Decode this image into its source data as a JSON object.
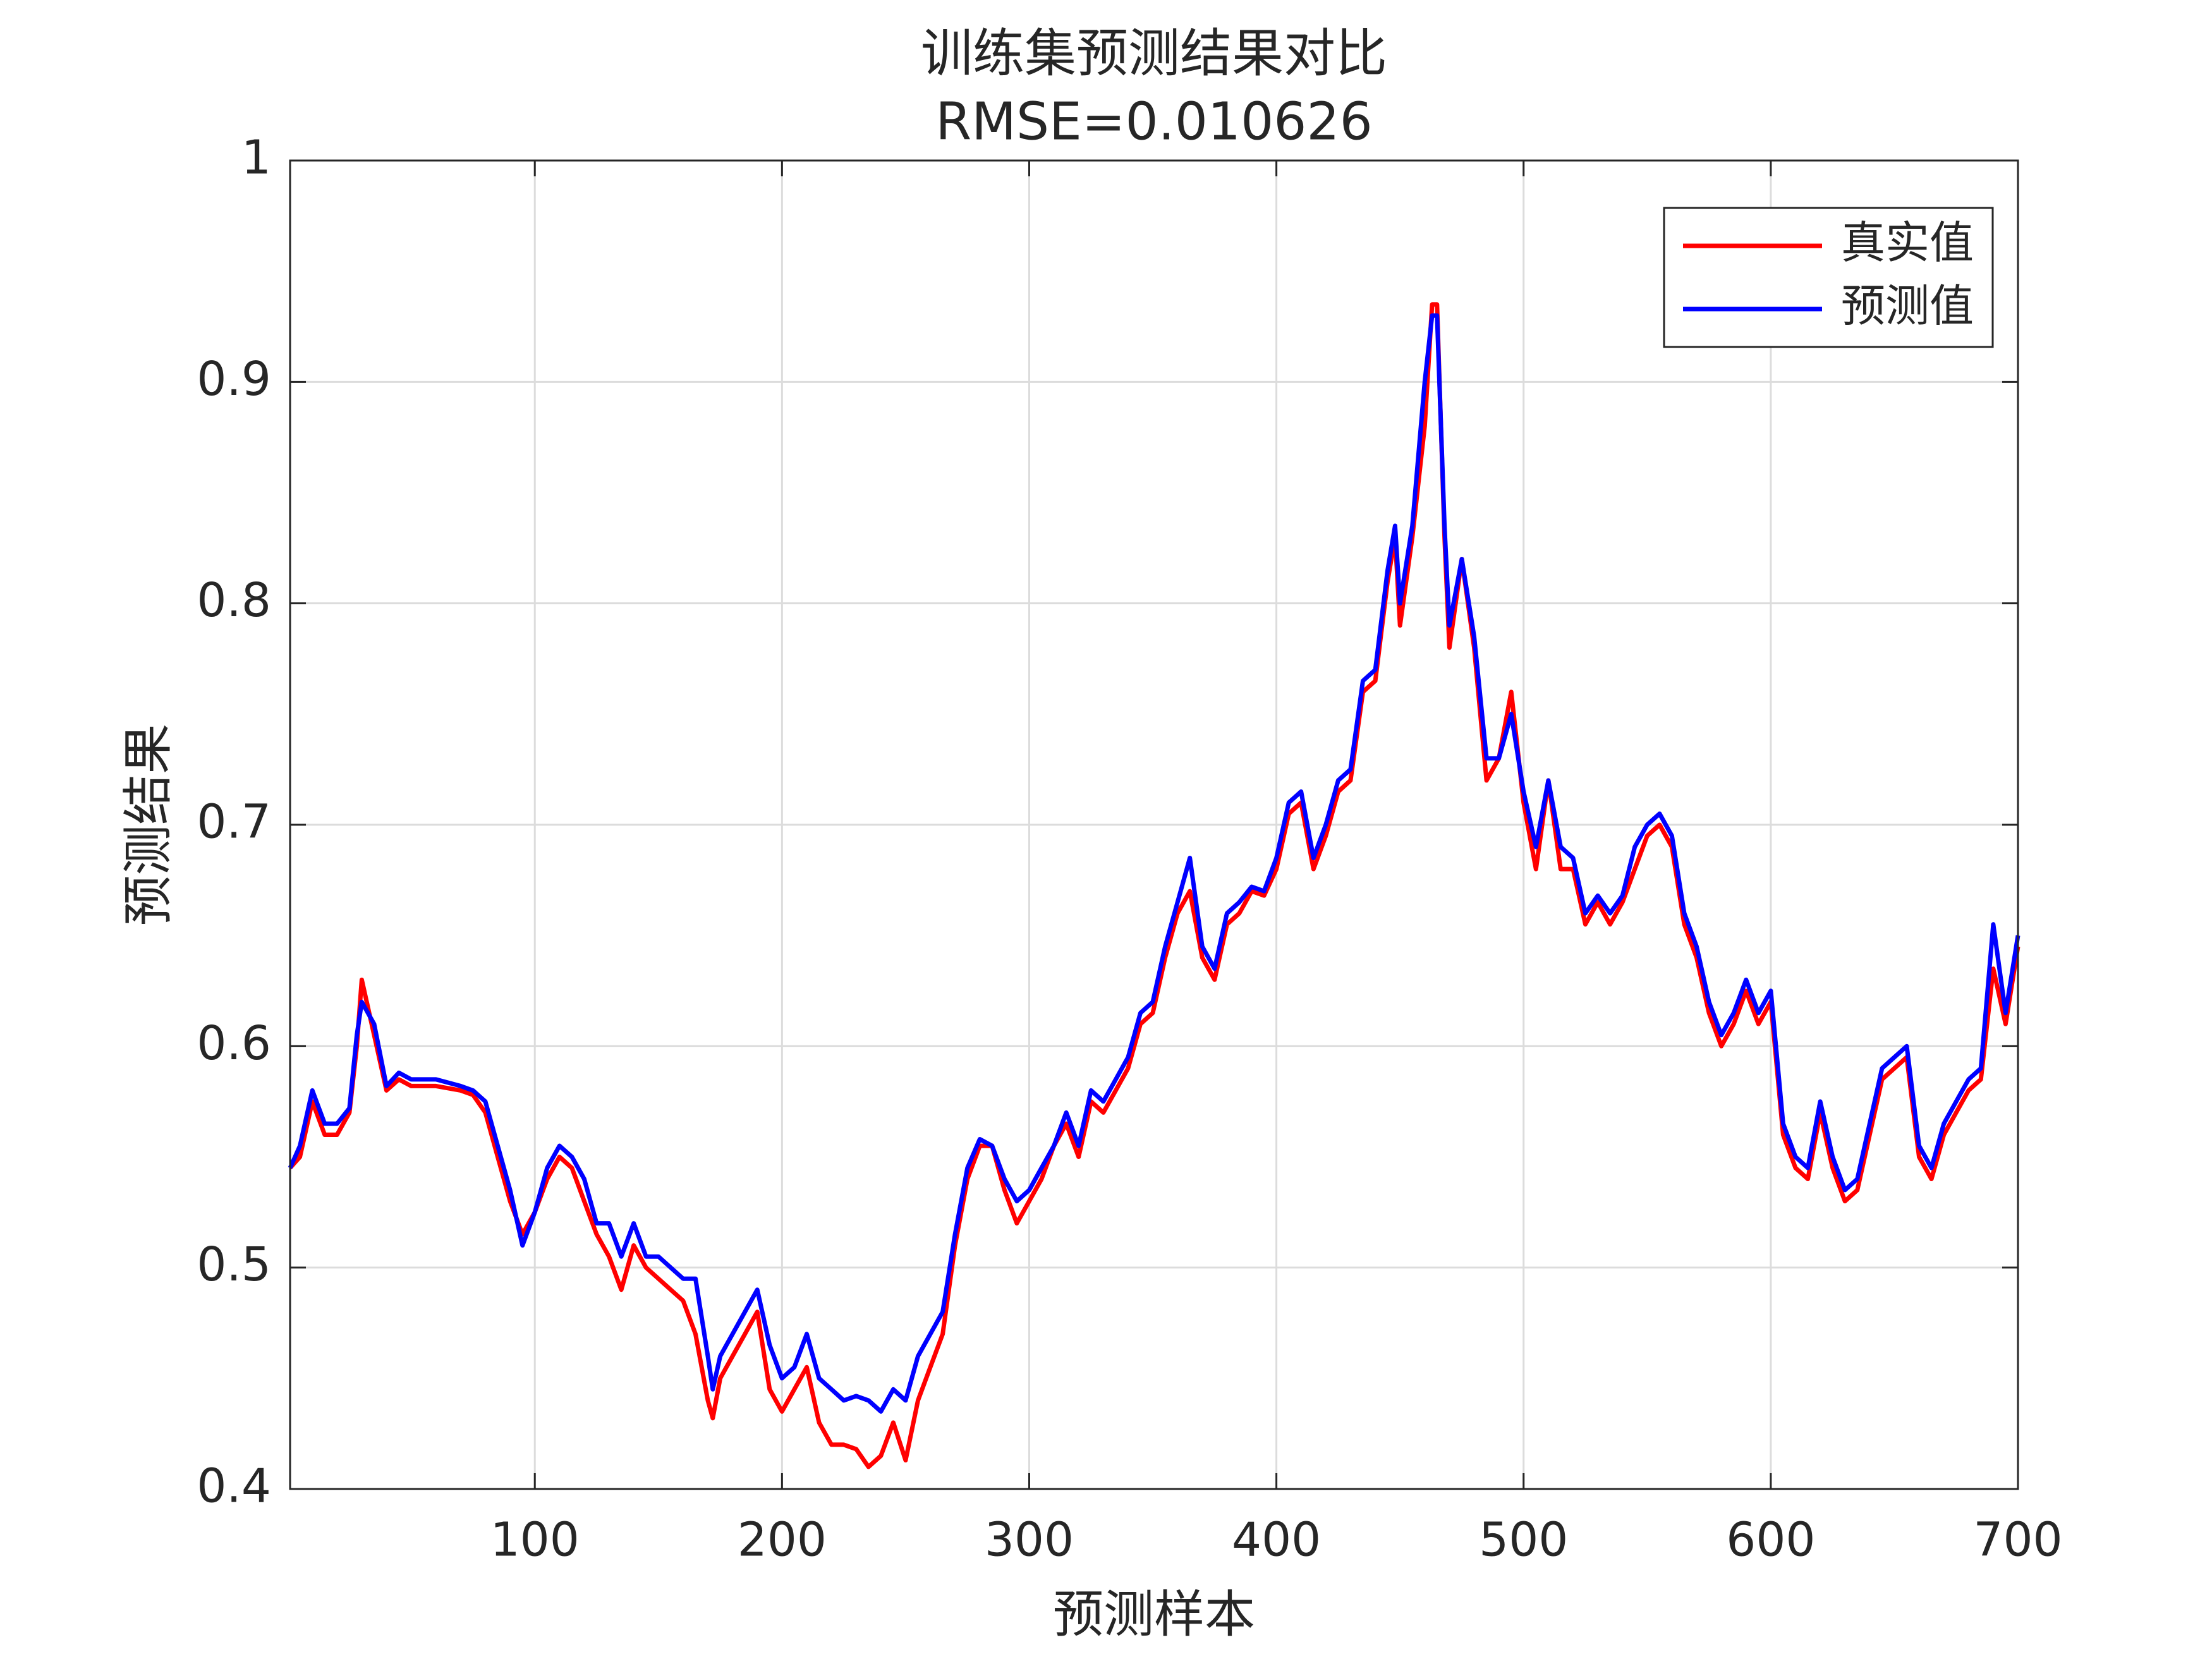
{
  "chart_data": {
    "type": "line",
    "title": "训练集预测结果对比",
    "subtitle": "RMSE=0.010626",
    "x_label": "预测样本",
    "y_label": "预测结果",
    "x": [
      1,
      5,
      10,
      15,
      20,
      25,
      28,
      30,
      35,
      40,
      45,
      50,
      60,
      70,
      75,
      80,
      85,
      90,
      95,
      100,
      105,
      110,
      115,
      120,
      125,
      130,
      135,
      140,
      145,
      150,
      155,
      160,
      165,
      170,
      172,
      175,
      180,
      185,
      190,
      195,
      200,
      205,
      210,
      215,
      220,
      225,
      230,
      235,
      240,
      245,
      250,
      255,
      260,
      265,
      270,
      275,
      280,
      285,
      290,
      295,
      300,
      305,
      310,
      315,
      320,
      325,
      330,
      335,
      340,
      345,
      350,
      355,
      360,
      365,
      370,
      375,
      380,
      385,
      390,
      395,
      400,
      405,
      410,
      415,
      420,
      425,
      430,
      435,
      440,
      445,
      448,
      450,
      455,
      460,
      463,
      465,
      468,
      470,
      475,
      480,
      485,
      490,
      495,
      500,
      505,
      510,
      515,
      520,
      525,
      530,
      535,
      540,
      545,
      550,
      555,
      560,
      565,
      570,
      575,
      580,
      585,
      590,
      595,
      600,
      605,
      610,
      615,
      620,
      625,
      630,
      635,
      640,
      645,
      650,
      655,
      660,
      665,
      670,
      675,
      680,
      685,
      690,
      695,
      700
    ],
    "series": [
      {
        "name": "真实值",
        "color": "#ff0000",
        "values": [
          0.545,
          0.55,
          0.575,
          0.56,
          0.56,
          0.57,
          0.6,
          0.63,
          0.605,
          0.58,
          0.585,
          0.582,
          0.582,
          0.58,
          0.578,
          0.57,
          0.55,
          0.53,
          0.515,
          0.525,
          0.54,
          0.55,
          0.545,
          0.53,
          0.515,
          0.505,
          0.49,
          0.51,
          0.5,
          0.495,
          0.49,
          0.485,
          0.47,
          0.44,
          0.432,
          0.45,
          0.46,
          0.47,
          0.48,
          0.445,
          0.435,
          0.445,
          0.455,
          0.43,
          0.42,
          0.42,
          0.418,
          0.41,
          0.415,
          0.43,
          0.413,
          0.44,
          0.455,
          0.47,
          0.51,
          0.54,
          0.555,
          0.555,
          0.535,
          0.52,
          0.53,
          0.54,
          0.555,
          0.565,
          0.55,
          0.575,
          0.57,
          0.58,
          0.59,
          0.61,
          0.615,
          0.64,
          0.66,
          0.67,
          0.64,
          0.63,
          0.655,
          0.66,
          0.67,
          0.668,
          0.68,
          0.705,
          0.71,
          0.68,
          0.695,
          0.715,
          0.72,
          0.76,
          0.765,
          0.81,
          0.83,
          0.79,
          0.83,
          0.88,
          0.935,
          0.935,
          0.83,
          0.78,
          0.82,
          0.78,
          0.72,
          0.73,
          0.76,
          0.71,
          0.68,
          0.72,
          0.68,
          0.68,
          0.655,
          0.665,
          0.655,
          0.665,
          0.68,
          0.695,
          0.7,
          0.69,
          0.655,
          0.64,
          0.615,
          0.6,
          0.61,
          0.625,
          0.61,
          0.62,
          0.56,
          0.545,
          0.54,
          0.57,
          0.545,
          0.53,
          0.535,
          0.56,
          0.585,
          0.59,
          0.595,
          0.55,
          0.54,
          0.56,
          0.57,
          0.58,
          0.585,
          0.635,
          0.61,
          0.645
        ]
      },
      {
        "name": "预测值",
        "color": "#0000ff",
        "values": [
          0.545,
          0.555,
          0.58,
          0.565,
          0.565,
          0.572,
          0.605,
          0.62,
          0.61,
          0.582,
          0.588,
          0.585,
          0.585,
          0.582,
          0.58,
          0.575,
          0.555,
          0.535,
          0.51,
          0.525,
          0.545,
          0.555,
          0.55,
          0.54,
          0.52,
          0.52,
          0.505,
          0.52,
          0.505,
          0.505,
          0.5,
          0.495,
          0.495,
          0.46,
          0.445,
          0.46,
          0.47,
          0.48,
          0.49,
          0.465,
          0.45,
          0.455,
          0.47,
          0.45,
          0.445,
          0.44,
          0.442,
          0.44,
          0.435,
          0.445,
          0.44,
          0.46,
          0.47,
          0.48,
          0.515,
          0.545,
          0.558,
          0.555,
          0.54,
          0.53,
          0.535,
          0.545,
          0.555,
          0.57,
          0.555,
          0.58,
          0.575,
          0.585,
          0.595,
          0.615,
          0.62,
          0.645,
          0.665,
          0.685,
          0.645,
          0.635,
          0.66,
          0.665,
          0.672,
          0.67,
          0.685,
          0.71,
          0.715,
          0.685,
          0.7,
          0.72,
          0.725,
          0.765,
          0.77,
          0.815,
          0.835,
          0.8,
          0.835,
          0.9,
          0.93,
          0.93,
          0.835,
          0.79,
          0.82,
          0.785,
          0.73,
          0.73,
          0.75,
          0.715,
          0.69,
          0.72,
          0.69,
          0.685,
          0.66,
          0.668,
          0.66,
          0.668,
          0.69,
          0.7,
          0.705,
          0.695,
          0.66,
          0.645,
          0.62,
          0.605,
          0.615,
          0.63,
          0.615,
          0.625,
          0.565,
          0.55,
          0.545,
          0.575,
          0.55,
          0.535,
          0.54,
          0.565,
          0.59,
          0.595,
          0.6,
          0.555,
          0.545,
          0.565,
          0.575,
          0.585,
          0.59,
          0.655,
          0.615,
          0.65
        ]
      }
    ],
    "xlim": [
      1,
      700
    ],
    "ylim": [
      0.4,
      1
    ],
    "xticks": [
      100,
      200,
      300,
      400,
      500,
      600,
      700
    ],
    "yticks": [
      0.4,
      0.5,
      0.6,
      0.7,
      0.8,
      0.9,
      1
    ],
    "grid": true,
    "legend": "top-right"
  }
}
